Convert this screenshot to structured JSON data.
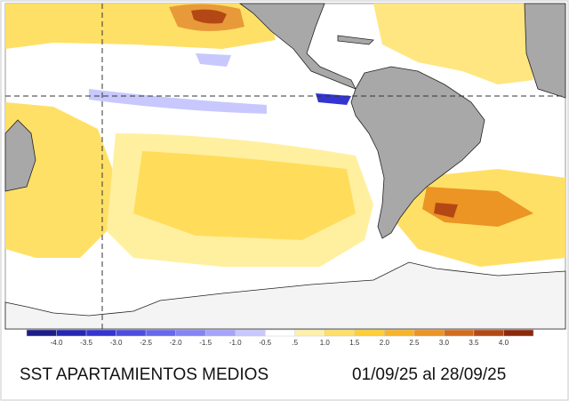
{
  "title": {
    "label": "SST APARTAMIENTOS MEDIOS",
    "dates": "01/09/25 al 28/09/25"
  },
  "colorbar": {
    "colors": [
      "#1c1c8a",
      "#2626b4",
      "#3434d2",
      "#4c4ce2",
      "#6666ee",
      "#8484f6",
      "#a4a4fc",
      "#c8c8ff",
      "#ffffff",
      "#fff2a8",
      "#ffe066",
      "#ffcf33",
      "#f8b428",
      "#ec9424",
      "#d46c1c",
      "#b44814",
      "#8c280c"
    ],
    "labels": [
      "-4.0",
      "-3.5",
      "-3.0",
      "-2.5",
      "-2.0",
      "-1.5",
      "-1.0",
      "-0.5",
      ".5",
      "1.0",
      "1.5",
      "2.0",
      "2.5",
      "3.0",
      "3.5",
      "4.0"
    ]
  }
}
